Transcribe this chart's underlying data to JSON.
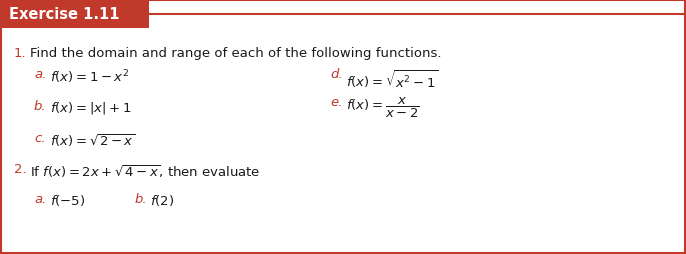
{
  "title": "Exercise 1.11",
  "title_bg": "#c0392b",
  "title_text_color": "#ffffff",
  "border_color": "#c0392b",
  "bg_color": "#ffffff",
  "label_color": "#c0392b",
  "text_color": "#1a1a1a",
  "figwidth": 6.86,
  "figheight": 2.55,
  "dpi": 100,
  "line1_num": "1.",
  "line1_text": "Find the domain and range of each of the following functions.",
  "left_items": [
    {
      "label": "a.",
      "text": "$f(x) = 1 - x^2$"
    },
    {
      "label": "b.",
      "text": "$f(x) = |x| + 1$"
    },
    {
      "label": "c.",
      "text": "$f(x) = \\sqrt{2 - x}$"
    }
  ],
  "right_items": [
    {
      "label": "d.",
      "text": "$f(x) = \\sqrt{x^2 - 1}$"
    },
    {
      "label": "e.",
      "text": "$f(x) = \\dfrac{x}{x-2}$"
    }
  ],
  "line2_num": "2.",
  "line2_text": "If $f(x) = 2x + \\sqrt{4 - x}$, then evaluate",
  "sub_items": [
    {
      "label": "a.",
      "text": "$f(-5)$"
    },
    {
      "label": "b.",
      "text": "$f(2)$"
    }
  ]
}
